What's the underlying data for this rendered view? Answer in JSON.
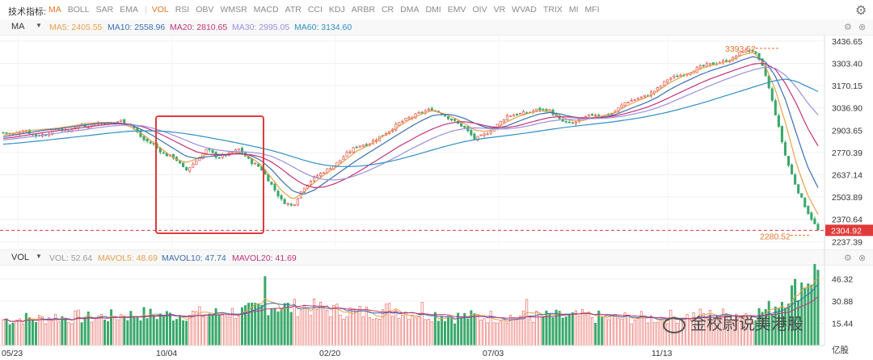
{
  "toolbar": {
    "label": "技术指标:",
    "tabs": [
      "MA",
      "BOLL",
      "SAR",
      "EMA",
      "VOL",
      "RSI",
      "OBV",
      "WMSR",
      "MACD",
      "ATR",
      "CCI",
      "KDJ",
      "ARBR",
      "CR",
      "DMA",
      "DMI",
      "EMV",
      "OIV",
      "VR",
      "WVAD",
      "TRIX",
      "MI",
      "MFI"
    ],
    "active_tabs": [
      "MA",
      "VOL"
    ]
  },
  "ma_bar": {
    "selector": "MA",
    "items": [
      {
        "text": "MA5: 2405.55",
        "color": "#e8a04a"
      },
      {
        "text": "MA10: 2558.96",
        "color": "#3a6fb0"
      },
      {
        "text": "MA20: 2810.65",
        "color": "#c2347a"
      },
      {
        "text": "MA30: 2995.05",
        "color": "#9b8fe0"
      },
      {
        "text": "MA60: 3134.60",
        "color": "#2f8fc6"
      }
    ]
  },
  "vol_bar": {
    "selector": "VOL",
    "items": [
      {
        "text": "VOL: 52.64",
        "color": "#999999"
      },
      {
        "text": "MAVOL5: 48.69",
        "color": "#e8a04a"
      },
      {
        "text": "MAVOL10: 47.74",
        "color": "#3a6fb0"
      },
      {
        "text": "MAVOL20: 41.69",
        "color": "#c2347a"
      }
    ]
  },
  "watermark": {
    "text": "金校尉说美港股"
  },
  "chart_data": [
    {
      "type": "candlestick",
      "y_ticks": [
        "3436.65",
        "3303.40",
        "3170.15",
        "3036.90",
        "2903.65",
        "2770.39",
        "2637.14",
        "2503.89",
        "2370.64",
        "2237.39"
      ],
      "ylim": [
        2210,
        3470
      ],
      "x_ticks": [
        "05/23",
        "10/04",
        "02/20",
        "07/03",
        "11/13"
      ],
      "current_price": "2304.92",
      "high_label": "3393.52",
      "low_label": "2280.52",
      "close_path": [
        2890,
        2880,
        2905,
        2870,
        2880,
        2915,
        2895,
        2935,
        2930,
        2950,
        2945,
        2960,
        2935,
        2850,
        2820,
        2760,
        2740,
        2660,
        2720,
        2790,
        2740,
        2760,
        2790,
        2720,
        2680,
        2580,
        2480,
        2450,
        2560,
        2620,
        2660,
        2700,
        2760,
        2810,
        2820,
        2860,
        2900,
        2950,
        2980,
        3010,
        3030,
        3000,
        2960,
        2920,
        2850,
        2880,
        2930,
        2990,
        3000,
        3010,
        3030,
        3020,
        2960,
        2940,
        2970,
        3000,
        2990,
        3010,
        3070,
        3090,
        3110,
        3150,
        3210,
        3230,
        3250,
        3280,
        3300,
        3310,
        3330,
        3380,
        3380,
        3260,
        3010,
        2740,
        2560,
        2420,
        2305
      ],
      "series": [
        {
          "name": "MA5",
          "color": "#e8a04a",
          "values": [
            2875,
            2885,
            2900,
            2905,
            2910,
            2915,
            2925,
            2935,
            2945,
            2950,
            2950,
            2945,
            2920,
            2880,
            2830,
            2780,
            2735,
            2710,
            2730,
            2760,
            2755,
            2760,
            2770,
            2745,
            2700,
            2620,
            2540,
            2490,
            2530,
            2590,
            2640,
            2680,
            2730,
            2780,
            2810,
            2850,
            2890,
            2930,
            2970,
            3000,
            3020,
            3005,
            2980,
            2945,
            2905,
            2895,
            2915,
            2955,
            2985,
            3005,
            3020,
            3015,
            2985,
            2960,
            2960,
            2980,
            2990,
            3005,
            3045,
            3075,
            3100,
            3135,
            3180,
            3215,
            3245,
            3270,
            3290,
            3305,
            3325,
            3355,
            3370,
            3300,
            3150,
            2940,
            2700,
            2520,
            2400
          ]
        },
        {
          "name": "MA10",
          "color": "#3a6fb0",
          "values": [
            2865,
            2875,
            2885,
            2895,
            2905,
            2912,
            2920,
            2928,
            2938,
            2945,
            2948,
            2945,
            2932,
            2905,
            2870,
            2830,
            2790,
            2750,
            2735,
            2745,
            2752,
            2758,
            2765,
            2755,
            2725,
            2670,
            2600,
            2540,
            2520,
            2545,
            2590,
            2635,
            2680,
            2725,
            2765,
            2805,
            2845,
            2885,
            2925,
            2960,
            2990,
            3000,
            2995,
            2975,
            2945,
            2920,
            2915,
            2930,
            2955,
            2980,
            3000,
            3010,
            3000,
            2985,
            2975,
            2975,
            2982,
            2995,
            3020,
            3045,
            3070,
            3100,
            3140,
            3175,
            3205,
            3235,
            3260,
            3280,
            3300,
            3325,
            3345,
            3320,
            3230,
            3080,
            2880,
            2690,
            2560
          ]
        },
        {
          "name": "MA20",
          "color": "#c2347a",
          "values": [
            2855,
            2862,
            2872,
            2882,
            2892,
            2900,
            2908,
            2916,
            2925,
            2933,
            2940,
            2942,
            2938,
            2925,
            2900,
            2870,
            2838,
            2805,
            2775,
            2760,
            2758,
            2760,
            2762,
            2758,
            2745,
            2715,
            2670,
            2620,
            2580,
            2560,
            2565,
            2585,
            2615,
            2650,
            2690,
            2730,
            2770,
            2810,
            2845,
            2880,
            2910,
            2935,
            2950,
            2955,
            2945,
            2930,
            2920,
            2920,
            2930,
            2948,
            2965,
            2980,
            2985,
            2982,
            2978,
            2977,
            2980,
            2988,
            3003,
            3020,
            3040,
            3065,
            3095,
            3125,
            3155,
            3185,
            3212,
            3235,
            3258,
            3280,
            3300,
            3305,
            3270,
            3180,
            3060,
            2920,
            2810
          ]
        },
        {
          "name": "MA30",
          "color": "#9b8fe0",
          "values": [
            2845,
            2852,
            2860,
            2868,
            2878,
            2886,
            2894,
            2902,
            2911,
            2920,
            2928,
            2933,
            2935,
            2930,
            2915,
            2895,
            2870,
            2845,
            2818,
            2798,
            2785,
            2778,
            2775,
            2772,
            2765,
            2748,
            2720,
            2685,
            2650,
            2622,
            2608,
            2606,
            2615,
            2635,
            2660,
            2690,
            2722,
            2755,
            2790,
            2822,
            2853,
            2880,
            2900,
            2913,
            2918,
            2915,
            2912,
            2912,
            2918,
            2930,
            2945,
            2958,
            2966,
            2970,
            2972,
            2973,
            2975,
            2980,
            2990,
            3003,
            3018,
            3038,
            3062,
            3090,
            3118,
            3145,
            3172,
            3198,
            3222,
            3245,
            3265,
            3280,
            3275,
            3230,
            3160,
            3070,
            2995
          ]
        },
        {
          "name": "MA60",
          "color": "#2f8fc6",
          "values": [
            2820,
            2825,
            2831,
            2837,
            2844,
            2851,
            2858,
            2865,
            2872,
            2880,
            2887,
            2893,
            2898,
            2900,
            2900,
            2897,
            2891,
            2883,
            2873,
            2862,
            2850,
            2838,
            2825,
            2812,
            2798,
            2783,
            2765,
            2745,
            2725,
            2708,
            2695,
            2688,
            2686,
            2688,
            2694,
            2704,
            2716,
            2731,
            2748,
            2766,
            2785,
            2803,
            2820,
            2835,
            2847,
            2856,
            2864,
            2872,
            2880,
            2889,
            2898,
            2908,
            2917,
            2925,
            2933,
            2940,
            2947,
            2955,
            2964,
            2974,
            2985,
            2998,
            3012,
            3028,
            3045,
            3063,
            3082,
            3102,
            3122,
            3142,
            3162,
            3182,
            3200,
            3210,
            3195,
            3165,
            3135
          ]
        }
      ]
    },
    {
      "type": "bar",
      "y_ticks": [
        "46.32",
        "30.88",
        "15.44"
      ],
      "unit": "亿股",
      "ylim": [
        0,
        55
      ],
      "volume_path": [
        18,
        18,
        19,
        18,
        19,
        20,
        19,
        20,
        19,
        20,
        20,
        21,
        21,
        22,
        21,
        21,
        21,
        22,
        22,
        22,
        22,
        23,
        23,
        24,
        26,
        28,
        27,
        26,
        27,
        26,
        25,
        24,
        24,
        23,
        23,
        24,
        25,
        24,
        23,
        22,
        22,
        21,
        20,
        20,
        20,
        20,
        20,
        20,
        20,
        20,
        20,
        20,
        20,
        20,
        20,
        20,
        19,
        19,
        19,
        19,
        19,
        19,
        20,
        20,
        20,
        21,
        21,
        21,
        22,
        22,
        22,
        24,
        28,
        34,
        40,
        46,
        52.64
      ],
      "series": [
        {
          "name": "MAVOL5",
          "color": "#e8a04a"
        },
        {
          "name": "MAVOL10",
          "color": "#3a6fb0"
        },
        {
          "name": "MAVOL20",
          "color": "#c2347a"
        }
      ]
    }
  ]
}
